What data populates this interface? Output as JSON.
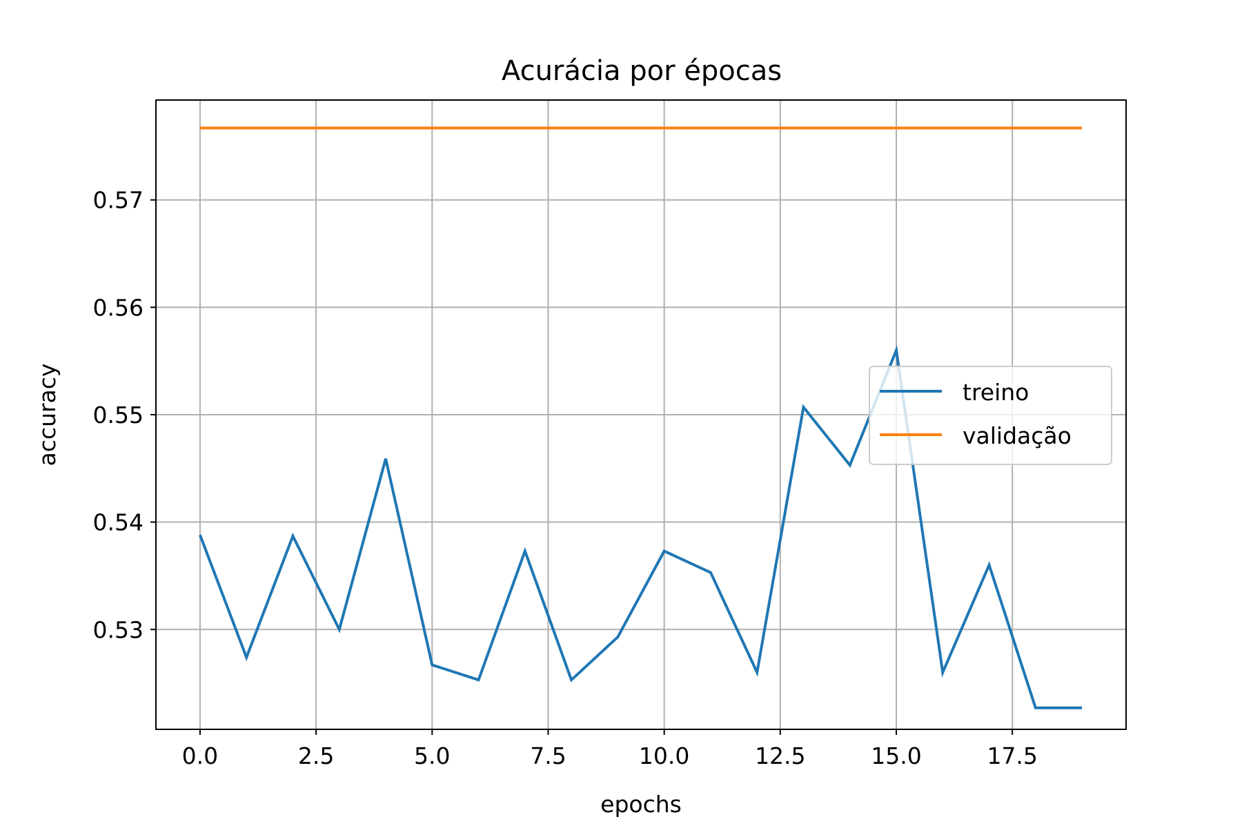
{
  "chart_data": {
    "type": "line",
    "title": "Acurácia por épocas",
    "xlabel": "epochs",
    "ylabel": "accuracy",
    "xlim": [
      -0.95,
      19.95
    ],
    "ylim": [
      0.5207,
      0.5793
    ],
    "xticks": [
      0.0,
      2.5,
      5.0,
      7.5,
      10.0,
      12.5,
      15.0,
      17.5
    ],
    "xtick_labels": [
      "0.0",
      "2.5",
      "5.0",
      "7.5",
      "10.0",
      "12.5",
      "15.0",
      "17.5"
    ],
    "yticks": [
      0.53,
      0.54,
      0.55,
      0.56,
      0.57
    ],
    "ytick_labels": [
      "0.53",
      "0.54",
      "0.55",
      "0.56",
      "0.57"
    ],
    "grid": true,
    "legend_position": "center-right",
    "x": [
      0,
      1,
      2,
      3,
      4,
      5,
      6,
      7,
      8,
      9,
      10,
      11,
      12,
      13,
      14,
      15,
      16,
      17,
      18,
      19
    ],
    "series": [
      {
        "name": "treino",
        "color": "#1f77b4",
        "values": [
          0.5388,
          0.5274,
          0.5387,
          0.53,
          0.5459,
          0.5267,
          0.5253,
          0.5373,
          0.5253,
          0.5293,
          0.5373,
          0.5353,
          0.526,
          0.5507,
          0.5453,
          0.556,
          0.526,
          0.536,
          0.5227,
          0.5227
        ]
      },
      {
        "name": "validação",
        "color": "#ff7f0e",
        "values": [
          0.5767,
          0.5767,
          0.5767,
          0.5767,
          0.5767,
          0.5767,
          0.5767,
          0.5767,
          0.5767,
          0.5767,
          0.5767,
          0.5767,
          0.5767,
          0.5767,
          0.5767,
          0.5767,
          0.5767,
          0.5767,
          0.5767,
          0.5767
        ]
      }
    ]
  }
}
